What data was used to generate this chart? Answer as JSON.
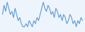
{
  "values": [
    5,
    8,
    6,
    9,
    7,
    5,
    6,
    4,
    7,
    5,
    3,
    4,
    2,
    1,
    1,
    2,
    1,
    3,
    2,
    1,
    3,
    2,
    4,
    3,
    5,
    7,
    9,
    7,
    6,
    8,
    7,
    5,
    6,
    4,
    7,
    6,
    4,
    5,
    3,
    5,
    4,
    2,
    3,
    5,
    4,
    2,
    3,
    1,
    3,
    2,
    4,
    3
  ],
  "line_color": "#5b9bd5",
  "bg_color": "#eef4fb",
  "linewidth": 0.8
}
